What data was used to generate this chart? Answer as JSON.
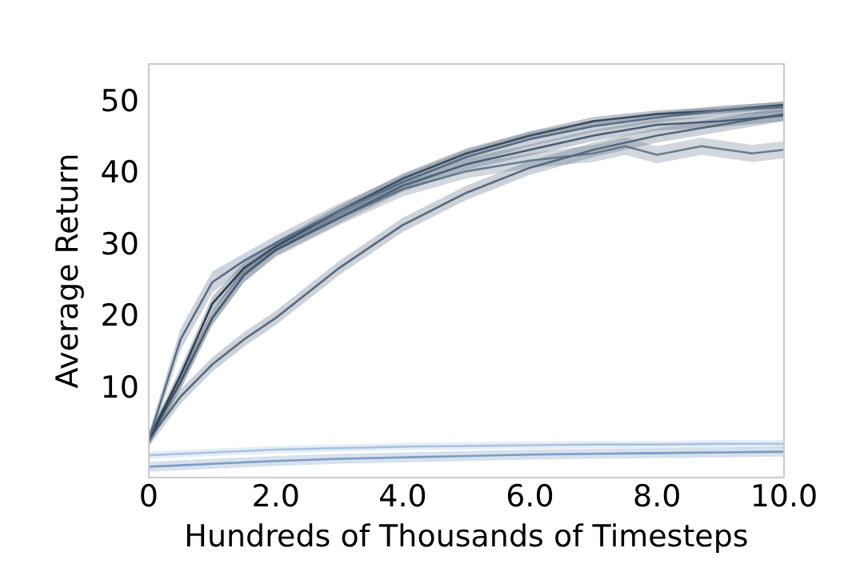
{
  "chart_data": {
    "type": "line",
    "xlabel": "Hundreds of Thousands of Timesteps",
    "ylabel": "Average Return",
    "xlim": [
      0,
      10
    ],
    "ylim": [
      -2.3,
      55.5
    ],
    "xticks": [
      0,
      {
        "value": 2,
        "label": "2.0"
      },
      {
        "value": 4,
        "label": "4.0"
      },
      {
        "value": 6,
        "label": "6.0"
      },
      {
        "value": 8,
        "label": "8.0"
      },
      {
        "value": 10,
        "label": "10.0"
      }
    ],
    "yticks": [
      10,
      20,
      30,
      40,
      50
    ],
    "grid": false,
    "legend": false,
    "marker": "none",
    "line_style": "solid",
    "x": [
      0,
      0.5,
      1,
      1.5,
      2,
      3,
      4,
      5,
      6,
      7,
      8,
      9,
      10
    ],
    "series": [
      {
        "color": "#5a6e84",
        "values": [
          3,
          17,
          25,
          28,
          30.5,
          35,
          39,
          42.5,
          45,
          46.8,
          48,
          49,
          49.5
        ],
        "lower": [
          2,
          15.5,
          23.5,
          27,
          29.5,
          34,
          38,
          41.5,
          44,
          46,
          47.3,
          48.3,
          48.8
        ],
        "upper": [
          4,
          18.5,
          26.5,
          29,
          31.5,
          36,
          40,
          43.5,
          46,
          47.6,
          48.7,
          49.7,
          50.2
        ]
      },
      {
        "color": "#2e3f52",
        "values": [
          3,
          12,
          22,
          27,
          30,
          35,
          39.5,
          43,
          45.5,
          47.5,
          48.5,
          49,
          49.8
        ],
        "lower": [
          2.3,
          11,
          21,
          26.2,
          29.3,
          34.3,
          38.8,
          42.3,
          44.9,
          46.9,
          48,
          48.5,
          49.3
        ],
        "upper": [
          3.7,
          13,
          23,
          27.8,
          30.7,
          35.7,
          40.2,
          43.7,
          46.1,
          48.1,
          49,
          49.5,
          50.3
        ]
      },
      {
        "color": "#4a5e74",
        "values": [
          3,
          11,
          20,
          26,
          29.5,
          34,
          38.5,
          41.5,
          43.5,
          45.5,
          47,
          47.5,
          48.3
        ],
        "lower": [
          2.2,
          10,
          19,
          25,
          28.7,
          33.2,
          37.7,
          40.7,
          42.7,
          44.7,
          46.2,
          46.7,
          47.5
        ],
        "upper": [
          3.8,
          12,
          21,
          27,
          30.3,
          34.8,
          39.3,
          42.3,
          44.3,
          46.3,
          47.8,
          48.3,
          49.1
        ]
      },
      {
        "color": "#56697e",
        "values": [
          3,
          9,
          13.5,
          17,
          20,
          27,
          33,
          37.5,
          41,
          43.5,
          45.5,
          47,
          48.5
        ],
        "lower": [
          2,
          8,
          12.5,
          16,
          19,
          26,
          32,
          36.5,
          40,
          42.5,
          44.5,
          46,
          47.5
        ],
        "upper": [
          4,
          10,
          14.5,
          18,
          21,
          28,
          34,
          38.5,
          42,
          44.5,
          46.5,
          48,
          49.5
        ]
      },
      {
        "color": "#6a7d91",
        "x": [
          0,
          0.5,
          1,
          1.5,
          2,
          3,
          4,
          5,
          6,
          7,
          7.5,
          8,
          8.7,
          9.5,
          10
        ],
        "values": [
          3,
          11,
          20,
          26,
          29.5,
          34,
          38,
          40.5,
          42,
          43,
          44,
          42.8,
          44,
          43,
          43.5
        ],
        "lower": [
          2,
          10,
          19,
          25,
          28.5,
          33,
          37,
          39.5,
          41,
          41.8,
          42.8,
          41.6,
          42.8,
          41.8,
          42.3
        ],
        "upper": [
          4,
          12,
          21,
          27,
          30.5,
          35,
          39,
          41.5,
          43,
          44.2,
          45.2,
          44,
          45.2,
          44.2,
          44.7
        ]
      },
      {
        "color": "#7b9cc4",
        "values": [
          -0.8,
          -0.6,
          -0.4,
          -0.2,
          0,
          0.3,
          0.5,
          0.7,
          0.9,
          1,
          1.1,
          1.2,
          1.3
        ],
        "lower": [
          -1.5,
          -1.3,
          -1.1,
          -0.9,
          -0.7,
          -0.4,
          -0.2,
          0,
          0.2,
          0.3,
          0.4,
          0.5,
          0.6
        ],
        "upper": [
          -0.1,
          0.1,
          0.3,
          0.5,
          0.7,
          1,
          1.2,
          1.4,
          1.6,
          1.7,
          1.8,
          1.9,
          2
        ]
      },
      {
        "color": "#a9c2e0",
        "values": [
          0.8,
          1,
          1.2,
          1.4,
          1.6,
          1.8,
          2,
          2.1,
          2.2,
          2.3,
          2.3,
          2.4,
          2.4
        ],
        "lower": [
          0.3,
          0.5,
          0.7,
          0.9,
          1.1,
          1.3,
          1.5,
          1.6,
          1.7,
          1.8,
          1.8,
          1.9,
          1.9
        ],
        "upper": [
          1.3,
          1.5,
          1.7,
          1.9,
          2.1,
          2.3,
          2.5,
          2.6,
          2.7,
          2.8,
          2.8,
          2.9,
          2.9
        ]
      }
    ]
  }
}
